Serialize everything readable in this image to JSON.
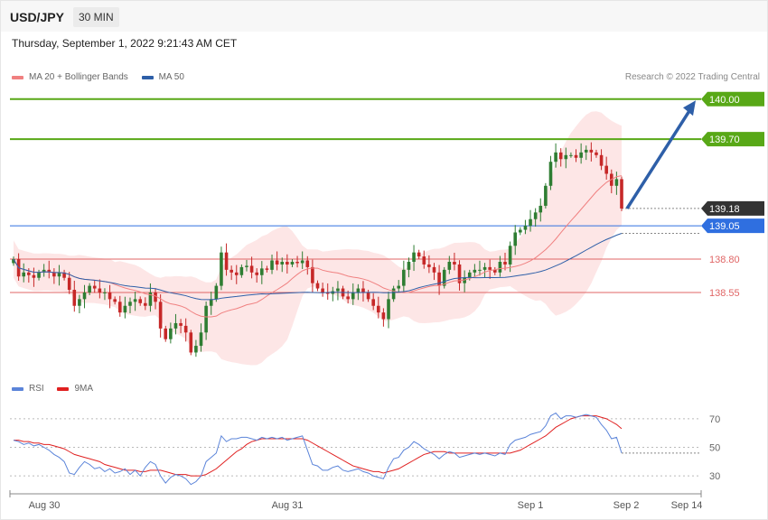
{
  "header": {
    "symbol": "USD/JPY",
    "interval": "30 MIN"
  },
  "datetime": "Thursday, September 1, 2022 9:21:43 AM CET",
  "legend_main": [
    {
      "label": "MA 20 + Bollinger Bands",
      "color": "#f08080"
    },
    {
      "label": "MA 50",
      "color": "#2e5fa8"
    }
  ],
  "attribution": "Research © 2022 Trading Central",
  "legend_rsi": [
    {
      "label": "RSI",
      "color": "#5b84d9"
    },
    {
      "label": "9MA",
      "color": "#e02020"
    }
  ],
  "colors": {
    "up": "#2e7d32",
    "down": "#c62828",
    "bollinger": "#fde2e2",
    "ma20": "#f08080",
    "ma50": "#2e5fa8",
    "resistance": "#58a817",
    "support": "#e06666",
    "pivot": "#2f6fe0",
    "current": "#333333",
    "arrow": "#2e5fa8"
  },
  "chart_data": [
    {
      "type": "candlestick",
      "ylim": [
        137.9,
        140.1
      ],
      "x_tick_labels": [
        "Aug 30",
        "Aug 31",
        "Sep 1",
        "Sep 2",
        "Sep 14"
      ],
      "levels": [
        {
          "value": 140.0,
          "label": "140.00",
          "kind": "resistance"
        },
        {
          "value": 139.7,
          "label": "139.70",
          "kind": "resistance"
        },
        {
          "value": 139.18,
          "label": "139.18",
          "kind": "current"
        },
        {
          "value": 139.05,
          "label": "139.05",
          "kind": "pivot"
        },
        {
          "value": 138.8,
          "label": "138.80",
          "kind": "support"
        },
        {
          "value": 138.55,
          "label": "138.55",
          "kind": "support"
        }
      ],
      "close": [
        138.8,
        138.67,
        138.7,
        138.68,
        138.66,
        138.7,
        138.72,
        138.7,
        138.67,
        138.7,
        138.66,
        138.57,
        138.45,
        138.5,
        138.55,
        138.6,
        138.58,
        138.55,
        138.55,
        138.5,
        138.48,
        138.4,
        138.45,
        138.48,
        138.5,
        138.47,
        138.45,
        138.55,
        138.48,
        138.28,
        138.2,
        138.28,
        138.32,
        138.3,
        138.25,
        138.1,
        138.15,
        138.25,
        138.45,
        138.5,
        138.6,
        138.85,
        138.72,
        138.7,
        138.68,
        138.74,
        138.75,
        138.7,
        138.68,
        138.73,
        138.72,
        138.79,
        138.76,
        138.78,
        138.76,
        138.78,
        138.77,
        138.79,
        138.74,
        138.62,
        138.58,
        138.55,
        138.54,
        138.56,
        138.58,
        138.52,
        138.5,
        138.55,
        138.58,
        138.55,
        138.5,
        138.45,
        138.4,
        138.35,
        138.5,
        138.58,
        138.6,
        138.72,
        138.78,
        138.85,
        138.82,
        138.76,
        138.74,
        138.7,
        138.6,
        138.72,
        138.78,
        138.76,
        138.62,
        138.66,
        138.7,
        138.72,
        138.72,
        138.74,
        138.72,
        138.7,
        138.78,
        138.76,
        138.9,
        139.0,
        139.02,
        139.05,
        139.1,
        139.15,
        139.2,
        139.35,
        139.53,
        139.6,
        139.55,
        139.58,
        139.58,
        139.56,
        139.6,
        139.62,
        139.6,
        139.58,
        139.5,
        139.44,
        139.35,
        139.4,
        139.18
      ],
      "rsi": {
        "ylim": [
          20,
          80
        ],
        "ticks": [
          70,
          50,
          30
        ],
        "values": [
          55,
          54,
          52,
          53,
          51,
          52,
          50,
          48,
          45,
          43,
          40,
          32,
          31,
          36,
          40,
          38,
          35,
          36,
          33,
          35,
          32,
          33,
          35,
          31,
          34,
          30,
          36,
          40,
          38,
          30,
          25,
          29,
          31,
          30,
          28,
          24,
          26,
          30,
          40,
          43,
          46,
          58,
          54,
          56,
          56,
          57,
          57,
          56,
          55,
          57,
          56,
          57,
          56,
          57,
          55,
          56,
          57,
          58,
          48,
          38,
          37,
          34,
          34,
          36,
          37,
          34,
          33,
          34,
          35,
          33,
          32,
          30,
          29,
          28,
          36,
          42,
          43,
          48,
          50,
          54,
          52,
          49,
          47,
          45,
          42,
          45,
          47,
          46,
          43,
          44,
          45,
          46,
          45,
          46,
          45,
          44,
          46,
          45,
          52,
          55,
          56,
          57,
          59,
          60,
          61,
          65,
          72,
          74,
          70,
          72,
          72,
          71,
          72,
          73,
          72,
          71,
          66,
          62,
          56,
          57,
          46
        ],
        "ma": [
          55,
          55,
          54,
          54,
          53,
          53,
          52,
          52,
          51,
          50,
          49,
          47,
          45,
          44,
          43,
          42,
          41,
          40,
          38,
          37,
          36,
          35,
          34,
          34,
          34,
          33,
          33,
          34,
          34,
          34,
          33,
          32,
          31,
          31,
          31,
          30,
          30,
          30,
          31,
          33,
          35,
          38,
          41,
          44,
          47,
          49,
          52,
          54,
          55,
          56,
          56,
          56,
          56,
          56,
          56,
          56,
          56,
          56,
          55,
          53,
          51,
          49,
          47,
          45,
          43,
          41,
          39,
          37,
          36,
          35,
          34,
          33,
          33,
          32,
          33,
          34,
          35,
          37,
          39,
          41,
          43,
          45,
          46,
          47,
          47,
          47,
          46,
          46,
          46,
          46,
          46,
          46,
          46,
          46,
          46,
          46,
          46,
          46,
          46,
          47,
          48,
          50,
          52,
          54,
          56,
          58,
          61,
          64,
          66,
          68,
          70,
          71,
          72,
          72,
          72,
          72,
          71,
          70,
          68,
          66,
          63
        ]
      }
    }
  ]
}
